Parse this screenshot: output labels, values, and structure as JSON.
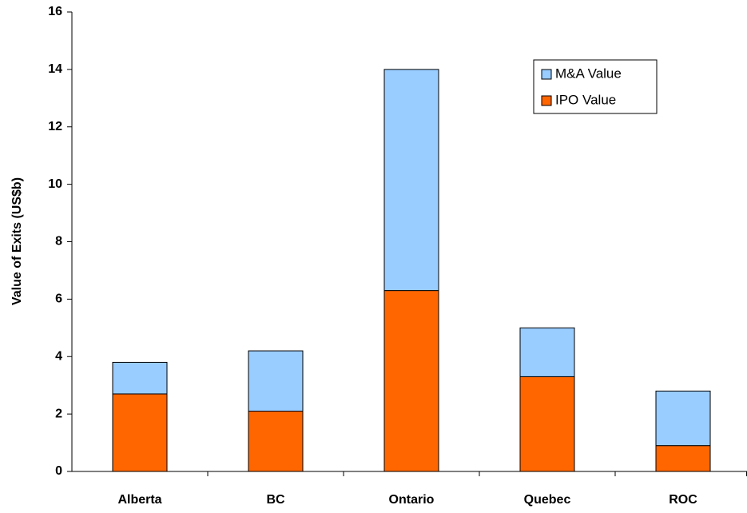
{
  "chart_data": {
    "type": "stacked_bar",
    "y_label": "Value of Exits (US$b)",
    "categories": [
      "Alberta",
      "BC",
      "Ontario",
      "Quebec",
      "ROC"
    ],
    "series": [
      {
        "name": "IPO Value",
        "color": "#ff6600",
        "values": [
          2.7,
          2.1,
          6.3,
          3.3,
          0.9
        ]
      },
      {
        "name": "M&A Value",
        "color": "#99ccff",
        "values": [
          1.1,
          2.1,
          7.7,
          1.7,
          1.9
        ]
      }
    ],
    "ylim": [
      0,
      16
    ],
    "yticks": [
      0,
      2,
      4,
      6,
      8,
      10,
      12,
      14,
      16
    ],
    "grid": false,
    "legend": "upper right"
  }
}
